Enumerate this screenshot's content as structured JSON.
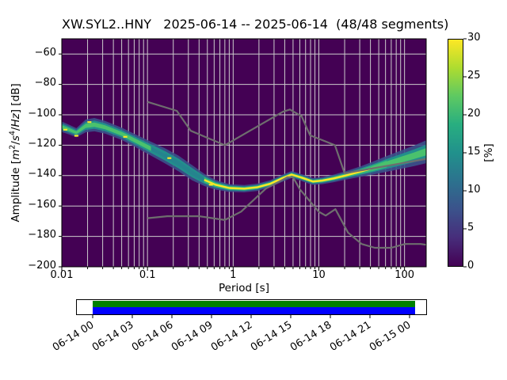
{
  "figure": {
    "background": "#ffffff"
  },
  "chart_data": {
    "type": "heatmap",
    "title": "XW.SYL2..HNY   2025-06-14 -- 2025-06-14  (48/48 segments)",
    "xlabel": "Period [s]",
    "ylabel_plain": "Amplitude [m2/s4/Hz] [dB]",
    "ylabel_parts": {
      "a": "Amplitude [",
      "m": "m",
      "m_exp": "2",
      "sl1": "/",
      "s": "s",
      "s_exp": "4",
      "sl2": "/",
      "hz": "Hz",
      "tail": "] [dB]"
    },
    "xscale": "log",
    "xlim": [
      0.01,
      179
    ],
    "ylim": [
      -200,
      -50
    ],
    "x_ticks": [
      {
        "v": 0.01,
        "label": "0.01"
      },
      {
        "v": 0.1,
        "label": "0.1"
      },
      {
        "v": 1,
        "label": "1"
      },
      {
        "v": 10,
        "label": "10"
      },
      {
        "v": 100,
        "label": "100"
      }
    ],
    "y_ticks": [
      {
        "v": -60,
        "label": "−60"
      },
      {
        "v": -80,
        "label": "−80"
      },
      {
        "v": -100,
        "label": "−100"
      },
      {
        "v": -120,
        "label": "−120"
      },
      {
        "v": -140,
        "label": "−140"
      },
      {
        "v": -160,
        "label": "−160"
      },
      {
        "v": -180,
        "label": "−180"
      },
      {
        "v": -200,
        "label": "−200"
      }
    ],
    "grid": {
      "show": true,
      "color": "#cccccc"
    },
    "plot_background": "#440154",
    "colormap": "viridis",
    "colorbar": {
      "label": "[%]",
      "min": 0,
      "max": 30,
      "ticks": [
        {
          "v": 0,
          "label": "0"
        },
        {
          "v": 5,
          "label": "5"
        },
        {
          "v": 10,
          "label": "10"
        },
        {
          "v": 15,
          "label": "15"
        },
        {
          "v": 20,
          "label": "20"
        },
        {
          "v": 25,
          "label": "25"
        },
        {
          "v": 30,
          "label": "30"
        }
      ],
      "gradient_stops": [
        "#440154",
        "#472d7b",
        "#3b528b",
        "#2c728e",
        "#21918c",
        "#28ae80",
        "#5ec962",
        "#addc30",
        "#fde725"
      ]
    },
    "noise_models": {
      "color": "#6e6e6e",
      "high": [
        [
          0.1,
          -91.5
        ],
        [
          0.22,
          -97.4
        ],
        [
          0.32,
          -110.5
        ],
        [
          0.8,
          -120.0
        ],
        [
          3.8,
          -98.0
        ],
        [
          4.6,
          -96.5
        ],
        [
          6.3,
          -101.0
        ],
        [
          7.9,
          -113.5
        ],
        [
          15.4,
          -120.0
        ],
        [
          20,
          -138.5
        ],
        [
          179,
          -129.0
        ]
      ],
      "low": [
        [
          0.1,
          -168.0
        ],
        [
          0.17,
          -166.7
        ],
        [
          0.4,
          -166.7
        ],
        [
          0.8,
          -169.2
        ],
        [
          1.24,
          -163.7
        ],
        [
          2.4,
          -148.6
        ],
        [
          4.3,
          -141.1
        ],
        [
          5,
          -141.1
        ],
        [
          6,
          -149.0
        ],
        [
          10,
          -163.8
        ],
        [
          12,
          -166.3
        ],
        [
          15.6,
          -162.1
        ],
        [
          21.9,
          -177.5
        ],
        [
          31.6,
          -185.0
        ],
        [
          45,
          -187.5
        ],
        [
          70,
          -187.5
        ],
        [
          101,
          -185.0
        ],
        [
          154,
          -185.0
        ],
        [
          179,
          -185.5
        ]
      ]
    },
    "psd_band": {
      "outer_color": "#3b528b",
      "mid_color": "#21918c",
      "yellow_inner_color": "#35b779",
      "core_colors": {
        "green": "#4ac16d",
        "teal": "#25848e",
        "yellow": "#fde725"
      },
      "points": [
        [
          0.0101,
          -108.0,
          3.4,
          "green"
        ],
        [
          0.0125,
          -110.0,
          3.2,
          "green"
        ],
        [
          0.0148,
          -111.8,
          3.0,
          "green"
        ],
        [
          0.019,
          -107.3,
          4.2,
          "green"
        ],
        [
          0.024,
          -106.5,
          4.4,
          "green"
        ],
        [
          0.032,
          -108.2,
          4.2,
          "green"
        ],
        [
          0.05,
          -112.5,
          4.0,
          "green"
        ],
        [
          0.075,
          -117.5,
          4.2,
          "green"
        ],
        [
          0.11,
          -122.3,
          4.6,
          "green"
        ],
        [
          0.16,
          -127.0,
          5.0,
          "teal"
        ],
        [
          0.23,
          -132.0,
          5.2,
          "teal"
        ],
        [
          0.33,
          -138.0,
          5.0,
          "teal"
        ],
        [
          0.46,
          -142.8,
          4.0,
          "teal"
        ],
        [
          0.62,
          -146.0,
          3.2,
          "yellow"
        ],
        [
          0.9,
          -148.2,
          2.6,
          "yellow"
        ],
        [
          1.35,
          -148.6,
          2.4,
          "yellow"
        ],
        [
          1.9,
          -147.7,
          2.4,
          "yellow"
        ],
        [
          2.7,
          -145.4,
          2.3,
          "yellow"
        ],
        [
          3.7,
          -141.9,
          2.3,
          "yellow"
        ],
        [
          4.8,
          -139.3,
          2.3,
          "yellow"
        ],
        [
          6.2,
          -141.2,
          2.3,
          "yellow"
        ],
        [
          8.5,
          -143.9,
          2.3,
          "yellow"
        ],
        [
          11,
          -143.3,
          2.3,
          "yellow"
        ],
        [
          15,
          -141.8,
          2.5,
          "yellow"
        ],
        [
          21,
          -139.8,
          2.8,
          "yellow"
        ],
        [
          30,
          -137.5,
          3.4,
          "yellow"
        ],
        [
          42,
          -135.2,
          4.2,
          "yellow"
        ],
        [
          62,
          -132.3,
          5.2,
          "green"
        ],
        [
          90,
          -129.6,
          6.0,
          "green"
        ],
        [
          130,
          -126.9,
          6.8,
          "green"
        ],
        [
          179,
          -124.3,
          7.5,
          "green"
        ]
      ],
      "yellow_flecks": [
        [
          0.011,
          -109.8
        ],
        [
          0.0148,
          -113.8
        ],
        [
          0.021,
          -104.8
        ],
        [
          0.055,
          -114.5
        ],
        [
          0.18,
          -128.5
        ],
        [
          0.55,
          -146.0
        ]
      ]
    }
  },
  "timeline": {
    "tick_labels": [
      "06-14 00",
      "06-14 03",
      "06-14 06",
      "06-14 09",
      "06-14 12",
      "06-14 15",
      "06-14 18",
      "06-14 21",
      "06-15 00"
    ],
    "coverage_color": "#008000",
    "segments_color": "#0000ff",
    "box_color": "#ffffff",
    "border_color": "#000000"
  }
}
